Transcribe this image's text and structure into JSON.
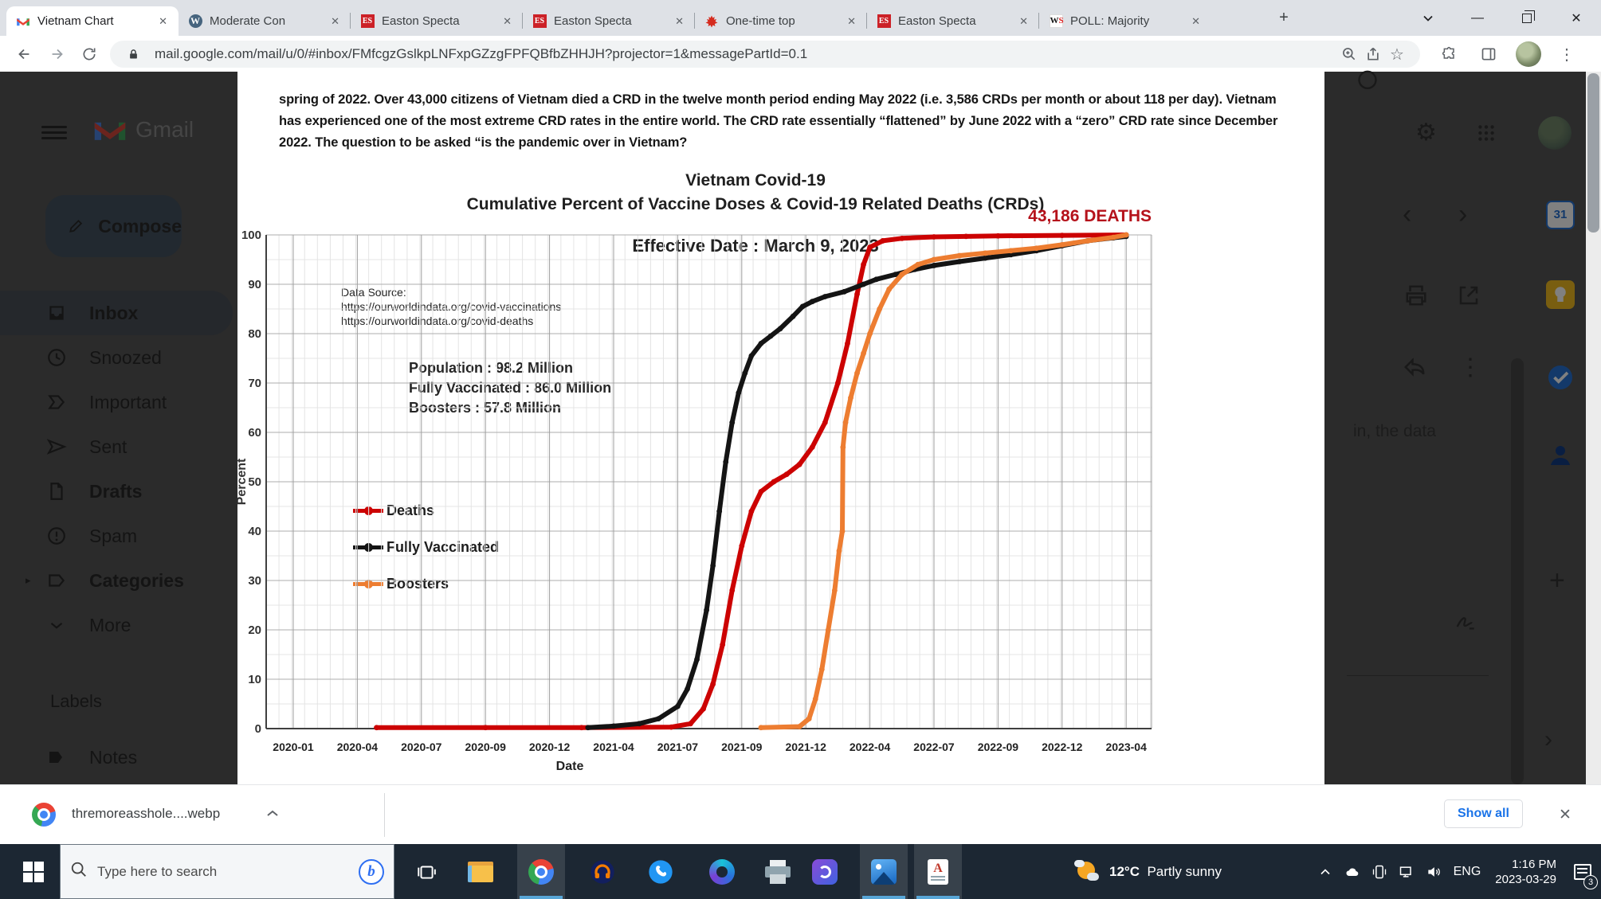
{
  "browser": {
    "tabs": [
      {
        "title": "Vietnam Chart",
        "icon": "gmail",
        "active": true
      },
      {
        "title": "Moderate Con",
        "icon": "wordpress",
        "active": false
      },
      {
        "title": "Easton Specta",
        "icon": "es",
        "active": false
      },
      {
        "title": "Easton Specta",
        "icon": "es",
        "active": false
      },
      {
        "title": "One-time top",
        "icon": "maple",
        "active": false
      },
      {
        "title": "Easton Specta",
        "icon": "es",
        "active": false
      },
      {
        "title": "POLL: Majority",
        "icon": "ws",
        "active": false
      }
    ],
    "url": "mail.google.com/mail/u/0/#inbox/FMfcgzGslkpLNFxpGZzgFPFQBfbZHHJH?projector=1&messagePartId=0.1"
  },
  "gmail": {
    "logo_text": "Gmail",
    "compose_label": "Compose",
    "nav": [
      {
        "label": "Inbox",
        "icon": "inbox",
        "selected": true,
        "bold": true
      },
      {
        "label": "Snoozed",
        "icon": "snoozed",
        "selected": false,
        "bold": false
      },
      {
        "label": "Important",
        "icon": "important",
        "selected": false,
        "bold": false
      },
      {
        "label": "Sent",
        "icon": "sent",
        "selected": false,
        "bold": false
      },
      {
        "label": "Drafts",
        "icon": "drafts",
        "selected": false,
        "bold": true
      },
      {
        "label": "Spam",
        "icon": "spam",
        "selected": false,
        "bold": false
      },
      {
        "label": "Categories",
        "icon": "categories",
        "selected": false,
        "bold": true,
        "expander": true
      },
      {
        "label": "More",
        "icon": "more",
        "selected": false,
        "bold": false
      }
    ],
    "labels_heading": "Labels",
    "notes_label": "Notes",
    "peek_text": "in, the data"
  },
  "document": {
    "paragraph_lines": [
      "spring of 2022.  Over 43,000 citizens of Vietnam died a CRD in the twelve month period ending May 2022 (i.e. 3,586 CRDs per month or about 118 per day). Vietnam",
      "has experienced one of the most extreme CRD rates in the entire world.  The CRD rate essentially “flattened” by June 2022 with a “zero” CRD rate since December",
      "2022.   The question to be asked “is the pandemic over in Vietnam?"
    ]
  },
  "chart_data": {
    "type": "line",
    "title": "Vietnam Covid-19",
    "subtitle": "Cumulative Percent of Vaccine Doses & Covid-19 Related Deaths (CRDs)",
    "annotation": "43,186 DEATHS",
    "inner_note": "Effective Date : March 9, 2023",
    "data_source_lines": [
      "Data Source:",
      "https://ourworldindata.org/covid-vaccinations",
      "https://ourworldindata.org/covid-deaths"
    ],
    "stats_lines": [
      "Population : 98.2 Million",
      "Fully Vaccinated :  86.0 Million",
      "Boosters : 57.8 Million"
    ],
    "xlabel": "Date",
    "ylabel": "Percent",
    "ylim": [
      0,
      100
    ],
    "y_ticks": [
      0,
      10,
      20,
      30,
      40,
      50,
      60,
      70,
      80,
      90,
      100
    ],
    "x_ticks": [
      "2020-01",
      "2020-04",
      "2020-07",
      "2020-09",
      "2020-12",
      "2021-04",
      "2021-07",
      "2021-09",
      "2021-12",
      "2022-04",
      "2022-07",
      "2022-09",
      "2022-12",
      "2023-04"
    ],
    "grid": true,
    "legend_position": "inside-left",
    "series": [
      {
        "name": "Deaths",
        "color": "#cc0202",
        "points": [
          [
            1.3,
            0.2
          ],
          [
            3,
            0.2
          ],
          [
            4.5,
            0.2
          ],
          [
            5.9,
            0.3
          ],
          [
            6.2,
            1
          ],
          [
            6.4,
            4
          ],
          [
            6.55,
            9
          ],
          [
            6.7,
            17
          ],
          [
            6.85,
            28
          ],
          [
            7.0,
            37
          ],
          [
            7.15,
            44
          ],
          [
            7.3,
            48
          ],
          [
            7.5,
            50
          ],
          [
            7.7,
            51.5
          ],
          [
            7.9,
            53.5
          ],
          [
            8.1,
            57
          ],
          [
            8.3,
            62
          ],
          [
            8.5,
            70
          ],
          [
            8.65,
            78
          ],
          [
            8.8,
            88
          ],
          [
            8.9,
            94
          ],
          [
            9.0,
            97.5
          ],
          [
            9.2,
            98.8
          ],
          [
            9.5,
            99.3
          ],
          [
            10,
            99.6
          ],
          [
            10.5,
            99.7
          ],
          [
            11,
            99.8
          ],
          [
            12,
            99.9
          ],
          [
            13,
            100
          ]
        ]
      },
      {
        "name": "Fully Vaccinated",
        "color": "#141414",
        "points": [
          [
            4.6,
            0.2
          ],
          [
            5.0,
            0.5
          ],
          [
            5.4,
            1
          ],
          [
            5.7,
            2
          ],
          [
            6.0,
            4.5
          ],
          [
            6.15,
            8
          ],
          [
            6.3,
            14
          ],
          [
            6.45,
            24
          ],
          [
            6.55,
            33
          ],
          [
            6.65,
            44
          ],
          [
            6.75,
            54
          ],
          [
            6.85,
            62
          ],
          [
            6.95,
            68
          ],
          [
            7.05,
            72
          ],
          [
            7.15,
            75.5
          ],
          [
            7.3,
            78
          ],
          [
            7.45,
            79.5
          ],
          [
            7.6,
            81
          ],
          [
            7.8,
            83.5
          ],
          [
            7.95,
            85.5
          ],
          [
            8.1,
            86.5
          ],
          [
            8.3,
            87.5
          ],
          [
            8.6,
            88.5
          ],
          [
            8.9,
            90
          ],
          [
            9.1,
            91
          ],
          [
            9.4,
            92
          ],
          [
            9.7,
            93
          ],
          [
            10.0,
            93.8
          ],
          [
            10.4,
            94.6
          ],
          [
            10.8,
            95.3
          ],
          [
            11.2,
            96
          ],
          [
            11.6,
            96.8
          ],
          [
            12.0,
            97.8
          ],
          [
            12.4,
            98.8
          ],
          [
            12.8,
            99.4
          ],
          [
            13,
            99.7
          ]
        ]
      },
      {
        "name": "Boosters",
        "color": "#ed7d31",
        "points": [
          [
            7.3,
            0.2
          ],
          [
            7.9,
            0.4
          ],
          [
            8.05,
            2
          ],
          [
            8.15,
            6
          ],
          [
            8.25,
            12
          ],
          [
            8.35,
            20
          ],
          [
            8.45,
            28
          ],
          [
            8.52,
            36
          ],
          [
            8.57,
            40
          ],
          [
            8.58,
            57
          ],
          [
            8.62,
            62
          ],
          [
            8.7,
            67
          ],
          [
            8.8,
            72
          ],
          [
            8.9,
            76
          ],
          [
            9.0,
            80
          ],
          [
            9.15,
            85
          ],
          [
            9.3,
            89
          ],
          [
            9.5,
            92
          ],
          [
            9.75,
            94
          ],
          [
            10,
            95
          ],
          [
            10.4,
            95.8
          ],
          [
            10.8,
            96.3
          ],
          [
            11.2,
            96.8
          ],
          [
            11.6,
            97.3
          ],
          [
            12,
            98
          ],
          [
            12.4,
            98.8
          ],
          [
            12.8,
            99.5
          ],
          [
            13,
            100
          ]
        ]
      }
    ]
  },
  "downloads": {
    "filename": "thremoreasshole....webp",
    "show_all_label": "Show all"
  },
  "taskbar": {
    "search_placeholder": "Type here to search",
    "weather_temp": "12°C",
    "weather_desc": "Partly sunny",
    "language": "ENG",
    "time": "1:16 PM",
    "date": "2023-03-29",
    "notification_count": "3"
  },
  "colors": {
    "accent_blue": "#1a73e8",
    "deaths_red": "#cc0202",
    "boosters_orange": "#ed7d31",
    "annotation_red": "#b5121b"
  }
}
